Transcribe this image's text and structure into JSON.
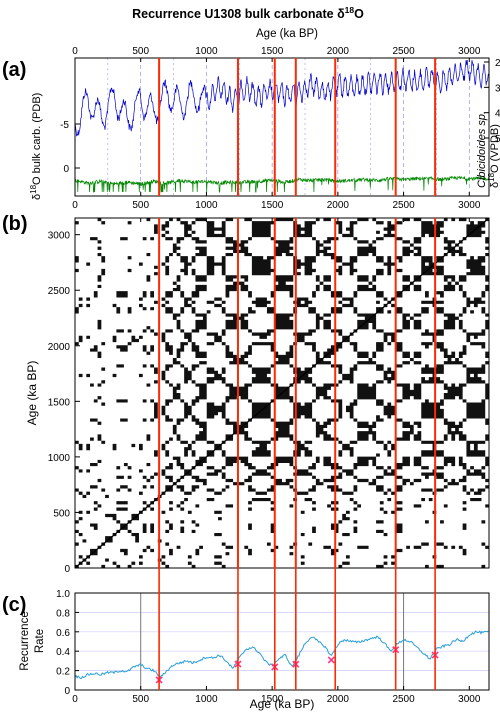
{
  "title": "Recurrence U1308 bulk carbonate δ18O",
  "title_main": "Recurrence U1308 bulk carbonate δ",
  "title_sup": "18",
  "title_end": "O",
  "panel_labels": [
    "(a)",
    "(b)",
    "(c)"
  ],
  "colors": {
    "benthic": "#0000cc",
    "bulk": "#008800",
    "recurrence": "#2a9fd6",
    "transition": "#ff2a00",
    "minima": "#ff3388",
    "vgrid": "#8080ff",
    "hgrid": "#ccccff",
    "axis": "#000000"
  },
  "axes": {
    "age_label": "Age (ka BP)",
    "age_label_b_y": "Age (ka BP)",
    "age_label_c": "Age (ka BP)",
    "x_ticks": [
      0,
      500,
      1000,
      1500,
      2000,
      2500,
      3000
    ],
    "panel_a": {
      "left_label_pre": "δ",
      "left_label_sup": "18",
      "left_label_post": "O bulk carb. (PDB)",
      "left_ticks": [
        -5,
        0
      ],
      "right_label_italic": "Cibicidoides sp.",
      "right_label_pre": "δ",
      "right_label_sup": "18",
      "right_label_post": "O (VPDB)",
      "right_ticks": [
        2,
        3,
        4,
        5
      ]
    },
    "panel_b": {
      "y_ticks": [
        0,
        500,
        1000,
        1500,
        2000,
        2500,
        3000
      ]
    },
    "panel_c": {
      "ylabel_1": "Recurrence",
      "ylabel_2": "Rate",
      "y_ticks": [
        "0",
        "0.2",
        "0.4",
        "0.6",
        "0.8",
        "1.0"
      ]
    }
  },
  "chart_data": [
    {
      "type": "line",
      "panel": "a",
      "title": "",
      "xlabel": "Age (ka BP)",
      "xlim": [
        0,
        3150
      ],
      "series": [
        {
          "axis": "right",
          "ylim_reversed": [
            2,
            5
          ],
          "x": [
            0,
            100,
            200,
            300,
            400,
            500,
            600,
            700,
            800,
            900,
            1000,
            1100,
            1200,
            1300,
            1400,
            1500,
            1600,
            1700,
            1800,
            1900,
            2000,
            2100,
            2200,
            2300,
            2400,
            2500,
            2600,
            2700,
            2800,
            2900,
            3000,
            3100
          ],
          "y": [
            4.5,
            3.5,
            4.2,
            3.4,
            4.3,
            3.5,
            4.0,
            3.2,
            3.7,
            3.3,
            3.6,
            3.0,
            3.5,
            3.0,
            3.4,
            3.1,
            3.3,
            3.2,
            2.9,
            3.2,
            2.9,
            3.0,
            2.9,
            2.8,
            2.8,
            2.7,
            2.8,
            2.6,
            2.8,
            2.5,
            2.3,
            2.6
          ]
        },
        {
          "axis": "left",
          "ylim_reversed": [
            -10,
            2
          ],
          "x": [
            0,
            100,
            200,
            300,
            400,
            500,
            600,
            700,
            800,
            900,
            1000,
            1100,
            1200,
            1300,
            1400,
            1500,
            1600,
            1700,
            1800,
            1900,
            2000,
            2100,
            2200,
            2300,
            2400,
            2500,
            2600,
            2700,
            2800,
            2900,
            3000,
            3100
          ],
          "y": [
            -0.5,
            -0.8,
            -0.6,
            -0.9,
            -0.7,
            -0.9,
            -0.6,
            -0.8,
            -0.5,
            -0.7,
            -0.6,
            -0.8,
            -0.7,
            -0.7,
            -0.6,
            -0.5,
            -0.7,
            -0.4,
            -0.5,
            -0.4,
            -0.6,
            -0.5,
            -0.4,
            -0.5,
            -0.3,
            -0.4,
            -0.3,
            -0.3,
            -0.4,
            -0.2,
            -0.3,
            -0.3
          ]
        }
      ]
    },
    {
      "type": "heatmap",
      "panel": "b",
      "title": "",
      "xlabel": "Age (ka BP)",
      "ylabel": "Age (ka BP)",
      "xlim": [
        0,
        3150
      ],
      "ylim": [
        0,
        3150
      ],
      "description_values": "binary recurrence matrix"
    },
    {
      "type": "line",
      "panel": "c",
      "title": "",
      "xlabel": "Age (ka BP)",
      "ylabel": "Recurrence Rate",
      "xlim": [
        0,
        3150
      ],
      "ylim": [
        0,
        1
      ],
      "vlines_grey": [
        500,
        2500
      ],
      "x": [
        0,
        50,
        100,
        150,
        200,
        250,
        300,
        350,
        400,
        450,
        500,
        550,
        600,
        650,
        700,
        750,
        800,
        850,
        900,
        950,
        1000,
        1050,
        1100,
        1150,
        1200,
        1250,
        1300,
        1350,
        1400,
        1450,
        1500,
        1550,
        1600,
        1650,
        1700,
        1750,
        1800,
        1850,
        1900,
        1950,
        2000,
        2050,
        2100,
        2150,
        2200,
        2250,
        2300,
        2350,
        2400,
        2450,
        2500,
        2550,
        2600,
        2650,
        2700,
        2750,
        2800,
        2850,
        2900,
        2950,
        3000,
        3050,
        3100,
        3150
      ],
      "y": [
        0.14,
        0.13,
        0.16,
        0.17,
        0.16,
        0.18,
        0.18,
        0.2,
        0.19,
        0.24,
        0.26,
        0.22,
        0.2,
        0.13,
        0.2,
        0.26,
        0.28,
        0.3,
        0.28,
        0.31,
        0.34,
        0.33,
        0.36,
        0.3,
        0.22,
        0.33,
        0.42,
        0.44,
        0.39,
        0.29,
        0.25,
        0.32,
        0.36,
        0.24,
        0.35,
        0.48,
        0.55,
        0.5,
        0.45,
        0.35,
        0.47,
        0.52,
        0.5,
        0.49,
        0.51,
        0.53,
        0.55,
        0.49,
        0.4,
        0.47,
        0.52,
        0.5,
        0.44,
        0.38,
        0.32,
        0.42,
        0.45,
        0.47,
        0.52,
        0.5,
        0.57,
        0.6,
        0.59,
        0.6
      ],
      "minima_marks_x": [
        640,
        1240,
        1520,
        1680,
        1950,
        2440,
        2740
      ]
    }
  ],
  "transitions_ka": [
    640,
    1240,
    1520,
    1680,
    1980,
    2440,
    2740
  ]
}
